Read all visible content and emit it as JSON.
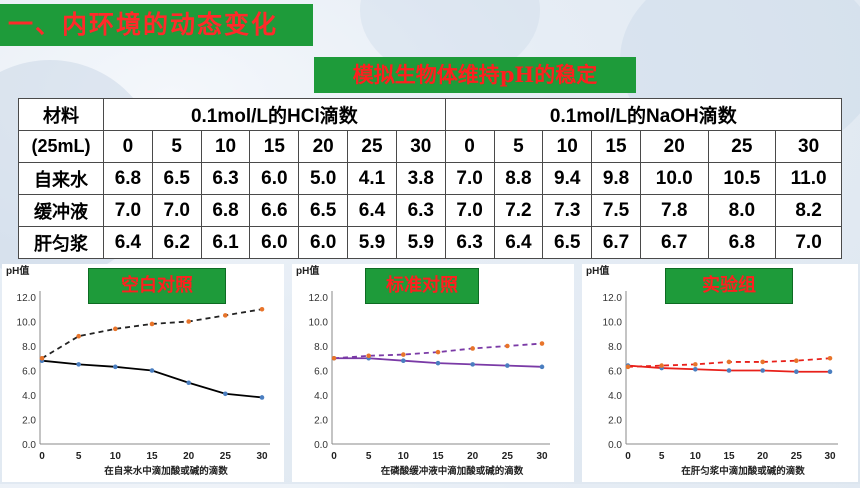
{
  "heading": "一、内环境的动态变化",
  "subheading": "模拟生物体维持pH的稳定",
  "table": {
    "material_label": "材料",
    "volume_label": "(25mL)",
    "hcl_header": "0.1mol/L的HCl滴数",
    "naoh_header": "0.1mol/L的NaOH滴数",
    "drops": [
      "0",
      "5",
      "10",
      "15",
      "20",
      "25",
      "30"
    ],
    "rows": [
      {
        "name": "自来水",
        "hcl": [
          "6.8",
          "6.5",
          "6.3",
          "6.0",
          "5.0",
          "4.1",
          "3.8"
        ],
        "naoh": [
          "7.0",
          "8.8",
          "9.4",
          "9.8",
          "10.0",
          "10.5",
          "11.0"
        ]
      },
      {
        "name": "缓冲液",
        "hcl": [
          "7.0",
          "7.0",
          "6.8",
          "6.6",
          "6.5",
          "6.4",
          "6.3"
        ],
        "naoh": [
          "7.0",
          "7.2",
          "7.3",
          "7.5",
          "7.8",
          "8.0",
          "8.2"
        ]
      },
      {
        "name": "肝匀浆",
        "hcl": [
          "6.4",
          "6.2",
          "6.1",
          "6.0",
          "6.0",
          "5.9",
          "5.9"
        ],
        "naoh": [
          "6.3",
          "6.4",
          "6.5",
          "6.7",
          "6.7",
          "6.8",
          "7.0"
        ]
      }
    ]
  },
  "chart_data": [
    {
      "type": "line",
      "label": "空白对照",
      "ylabel": "pH值",
      "xlabel": "在自来水中滴加酸或碱的滴数",
      "x": [
        0,
        5,
        10,
        15,
        20,
        25,
        30
      ],
      "ylim": [
        0,
        12
      ],
      "yticks": [
        "0.0",
        "2.0",
        "4.0",
        "6.0",
        "8.0",
        "10.0",
        "12.0"
      ],
      "series": [
        {
          "style": "solid",
          "values": [
            6.8,
            6.5,
            6.3,
            6.0,
            5.0,
            4.1,
            3.8
          ]
        },
        {
          "style": "dashed",
          "values": [
            7.0,
            8.8,
            9.4,
            9.8,
            10.0,
            10.5,
            11.0
          ]
        }
      ],
      "colors": {
        "solid": "#000000",
        "dashed": "#222222",
        "marker": "#e8742a"
      }
    },
    {
      "type": "line",
      "label": "标准对照",
      "ylabel": "pH值",
      "xlabel": "在磷酸缓冲液中滴加酸或碱的滴数",
      "x": [
        0,
        5,
        10,
        15,
        20,
        25,
        30
      ],
      "ylim": [
        0,
        12
      ],
      "yticks": [
        "0.0",
        "2.0",
        "4.0",
        "6.0",
        "8.0",
        "10.0",
        "12.0"
      ],
      "series": [
        {
          "style": "solid",
          "values": [
            7.0,
            7.0,
            6.8,
            6.6,
            6.5,
            6.4,
            6.3
          ]
        },
        {
          "style": "dashed",
          "values": [
            7.0,
            7.2,
            7.3,
            7.5,
            7.8,
            8.0,
            8.2
          ]
        }
      ],
      "colors": {
        "solid": "#7a3aa6",
        "dashed": "#7a3aa6",
        "marker": "#e8742a"
      }
    },
    {
      "type": "line",
      "label": "实验组",
      "ylabel": "pH值",
      "xlabel": "在肝匀浆中滴加酸或碱的滴数",
      "x": [
        0,
        5,
        10,
        15,
        20,
        25,
        30
      ],
      "ylim": [
        0,
        12
      ],
      "yticks": [
        "0.0",
        "2.0",
        "4.0",
        "6.0",
        "8.0",
        "10.0",
        "12.0"
      ],
      "series": [
        {
          "style": "solid",
          "values": [
            6.4,
            6.2,
            6.1,
            6.0,
            6.0,
            5.9,
            5.9
          ]
        },
        {
          "style": "dashed",
          "values": [
            6.3,
            6.4,
            6.5,
            6.7,
            6.7,
            6.8,
            7.0
          ]
        }
      ],
      "colors": {
        "solid": "#e8201a",
        "dashed": "#e8201a",
        "marker": "#e8742a"
      }
    }
  ]
}
